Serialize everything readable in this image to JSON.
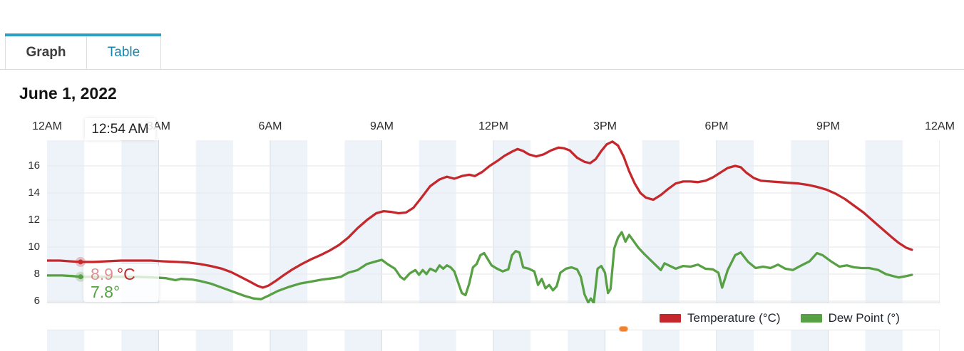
{
  "tabs": {
    "graph": "Graph",
    "table": "Table"
  },
  "heading": "June 1, 2022",
  "tooltip": {
    "time": "12:54 AM",
    "temp_value": "8.9",
    "temp_unit": "°C",
    "dew_value": "7.8",
    "dew_unit": "°"
  },
  "legend": [
    {
      "label": "Temperature (°C)",
      "color": "#c5282c"
    },
    {
      "label": "Dew Point (°)",
      "color": "#57a044"
    }
  ],
  "chart_data": {
    "type": "line",
    "title": "June 1, 2022",
    "x_ticks": [
      "12AM",
      "3AM",
      "6AM",
      "9AM",
      "12PM",
      "3PM",
      "6PM",
      "9PM",
      "12AM"
    ],
    "y_ticks": [
      16,
      14,
      12,
      10,
      8,
      6
    ],
    "x_range_hours": [
      0,
      24
    ],
    "y_range": [
      5.8,
      17.9
    ],
    "grid": true,
    "legend_position": "bottom-right",
    "colors": {
      "band": "#edf3f9",
      "vgrid": "#d7dce2",
      "hgrid": "#e9ebee"
    },
    "hover": {
      "t": 0.9,
      "points": [
        {
          "series": 0,
          "v": 8.9
        },
        {
          "series": 1,
          "v": 7.8
        }
      ]
    },
    "lower_panel_marker": {
      "t": 15.5,
      "color": "#f08130"
    },
    "series": [
      {
        "name": "Temperature (°C)",
        "color": "#c5282c",
        "points": [
          [
            0,
            9.0
          ],
          [
            0.35,
            9.0
          ],
          [
            0.6,
            8.95
          ],
          [
            0.9,
            8.9
          ],
          [
            1.25,
            8.9
          ],
          [
            1.6,
            8.95
          ],
          [
            2.0,
            9.0
          ],
          [
            2.4,
            9.0
          ],
          [
            2.8,
            9.0
          ],
          [
            3.1,
            8.95
          ],
          [
            3.5,
            8.9
          ],
          [
            3.8,
            8.85
          ],
          [
            4.1,
            8.75
          ],
          [
            4.4,
            8.6
          ],
          [
            4.7,
            8.4
          ],
          [
            4.95,
            8.15
          ],
          [
            5.2,
            7.8
          ],
          [
            5.45,
            7.45
          ],
          [
            5.65,
            7.15
          ],
          [
            5.8,
            7.0
          ],
          [
            5.95,
            7.15
          ],
          [
            6.15,
            7.5
          ],
          [
            6.35,
            7.9
          ],
          [
            6.6,
            8.35
          ],
          [
            6.85,
            8.75
          ],
          [
            7.1,
            9.1
          ],
          [
            7.35,
            9.4
          ],
          [
            7.6,
            9.75
          ],
          [
            7.85,
            10.15
          ],
          [
            8.1,
            10.7
          ],
          [
            8.35,
            11.4
          ],
          [
            8.6,
            12.0
          ],
          [
            8.85,
            12.5
          ],
          [
            9.05,
            12.65
          ],
          [
            9.25,
            12.6
          ],
          [
            9.45,
            12.5
          ],
          [
            9.65,
            12.55
          ],
          [
            9.85,
            12.9
          ],
          [
            10.05,
            13.6
          ],
          [
            10.3,
            14.5
          ],
          [
            10.55,
            15.0
          ],
          [
            10.75,
            15.2
          ],
          [
            10.95,
            15.05
          ],
          [
            11.15,
            15.25
          ],
          [
            11.35,
            15.35
          ],
          [
            11.5,
            15.25
          ],
          [
            11.7,
            15.55
          ],
          [
            11.9,
            16.0
          ],
          [
            12.1,
            16.35
          ],
          [
            12.3,
            16.75
          ],
          [
            12.5,
            17.05
          ],
          [
            12.65,
            17.25
          ],
          [
            12.8,
            17.1
          ],
          [
            12.95,
            16.85
          ],
          [
            13.15,
            16.7
          ],
          [
            13.35,
            16.85
          ],
          [
            13.55,
            17.15
          ],
          [
            13.75,
            17.35
          ],
          [
            13.9,
            17.3
          ],
          [
            14.05,
            17.15
          ],
          [
            14.25,
            16.6
          ],
          [
            14.45,
            16.3
          ],
          [
            14.6,
            16.2
          ],
          [
            14.75,
            16.5
          ],
          [
            14.9,
            17.1
          ],
          [
            15.05,
            17.6
          ],
          [
            15.2,
            17.8
          ],
          [
            15.35,
            17.5
          ],
          [
            15.5,
            16.7
          ],
          [
            15.65,
            15.6
          ],
          [
            15.8,
            14.7
          ],
          [
            15.95,
            14.0
          ],
          [
            16.1,
            13.65
          ],
          [
            16.3,
            13.5
          ],
          [
            16.5,
            13.85
          ],
          [
            16.7,
            14.3
          ],
          [
            16.9,
            14.7
          ],
          [
            17.1,
            14.85
          ],
          [
            17.3,
            14.85
          ],
          [
            17.5,
            14.8
          ],
          [
            17.7,
            14.9
          ],
          [
            17.9,
            15.15
          ],
          [
            18.1,
            15.5
          ],
          [
            18.3,
            15.85
          ],
          [
            18.5,
            16.0
          ],
          [
            18.65,
            15.9
          ],
          [
            18.8,
            15.5
          ],
          [
            19.0,
            15.1
          ],
          [
            19.2,
            14.9
          ],
          [
            19.45,
            14.85
          ],
          [
            19.7,
            14.8
          ],
          [
            19.95,
            14.75
          ],
          [
            20.2,
            14.7
          ],
          [
            20.45,
            14.6
          ],
          [
            20.7,
            14.45
          ],
          [
            20.95,
            14.25
          ],
          [
            21.2,
            13.95
          ],
          [
            21.45,
            13.55
          ],
          [
            21.7,
            13.05
          ],
          [
            21.95,
            12.55
          ],
          [
            22.2,
            11.95
          ],
          [
            22.45,
            11.35
          ],
          [
            22.7,
            10.75
          ],
          [
            22.9,
            10.3
          ],
          [
            23.1,
            9.95
          ],
          [
            23.25,
            9.8
          ]
        ]
      },
      {
        "name": "Dew Point (°)",
        "color": "#57a044",
        "points": [
          [
            0,
            7.9
          ],
          [
            0.4,
            7.9
          ],
          [
            0.7,
            7.85
          ],
          [
            0.9,
            7.8
          ],
          [
            1.4,
            7.8
          ],
          [
            1.9,
            7.8
          ],
          [
            2.4,
            7.8
          ],
          [
            2.9,
            7.75
          ],
          [
            3.2,
            7.7
          ],
          [
            3.45,
            7.55
          ],
          [
            3.6,
            7.65
          ],
          [
            3.9,
            7.6
          ],
          [
            4.1,
            7.5
          ],
          [
            4.4,
            7.3
          ],
          [
            4.7,
            7.0
          ],
          [
            5.0,
            6.7
          ],
          [
            5.3,
            6.4
          ],
          [
            5.55,
            6.2
          ],
          [
            5.75,
            6.15
          ],
          [
            5.95,
            6.4
          ],
          [
            6.2,
            6.75
          ],
          [
            6.5,
            7.05
          ],
          [
            6.8,
            7.3
          ],
          [
            7.1,
            7.45
          ],
          [
            7.4,
            7.6
          ],
          [
            7.7,
            7.7
          ],
          [
            7.9,
            7.8
          ],
          [
            8.1,
            8.1
          ],
          [
            8.35,
            8.3
          ],
          [
            8.6,
            8.75
          ],
          [
            8.85,
            8.95
          ],
          [
            9.0,
            9.05
          ],
          [
            9.15,
            8.75
          ],
          [
            9.35,
            8.4
          ],
          [
            9.5,
            7.8
          ],
          [
            9.6,
            7.6
          ],
          [
            9.75,
            8.05
          ],
          [
            9.9,
            8.3
          ],
          [
            10.0,
            7.95
          ],
          [
            10.1,
            8.3
          ],
          [
            10.2,
            8.0
          ],
          [
            10.3,
            8.4
          ],
          [
            10.45,
            8.2
          ],
          [
            10.55,
            8.65
          ],
          [
            10.65,
            8.4
          ],
          [
            10.75,
            8.65
          ],
          [
            10.85,
            8.5
          ],
          [
            10.95,
            8.2
          ],
          [
            11.05,
            7.4
          ],
          [
            11.15,
            6.6
          ],
          [
            11.25,
            6.45
          ],
          [
            11.35,
            7.3
          ],
          [
            11.45,
            8.5
          ],
          [
            11.55,
            8.75
          ],
          [
            11.65,
            9.4
          ],
          [
            11.75,
            9.55
          ],
          [
            11.85,
            9.1
          ],
          [
            11.95,
            8.65
          ],
          [
            12.1,
            8.4
          ],
          [
            12.25,
            8.2
          ],
          [
            12.4,
            8.35
          ],
          [
            12.5,
            9.4
          ],
          [
            12.6,
            9.7
          ],
          [
            12.7,
            9.6
          ],
          [
            12.8,
            8.5
          ],
          [
            12.95,
            8.4
          ],
          [
            13.1,
            8.2
          ],
          [
            13.2,
            7.2
          ],
          [
            13.3,
            7.65
          ],
          [
            13.4,
            6.95
          ],
          [
            13.5,
            7.2
          ],
          [
            13.6,
            6.8
          ],
          [
            13.7,
            7.1
          ],
          [
            13.8,
            8.1
          ],
          [
            13.95,
            8.4
          ],
          [
            14.1,
            8.5
          ],
          [
            14.25,
            8.35
          ],
          [
            14.35,
            7.8
          ],
          [
            14.45,
            6.5
          ],
          [
            14.55,
            5.9
          ],
          [
            14.62,
            6.2
          ],
          [
            14.7,
            5.85
          ],
          [
            14.8,
            8.4
          ],
          [
            14.9,
            8.6
          ],
          [
            15.0,
            8.1
          ],
          [
            15.08,
            6.6
          ],
          [
            15.15,
            6.9
          ],
          [
            15.25,
            9.9
          ],
          [
            15.35,
            10.7
          ],
          [
            15.45,
            11.1
          ],
          [
            15.55,
            10.4
          ],
          [
            15.65,
            10.9
          ],
          [
            15.78,
            10.4
          ],
          [
            15.9,
            9.95
          ],
          [
            16.05,
            9.5
          ],
          [
            16.2,
            9.1
          ],
          [
            16.35,
            8.7
          ],
          [
            16.5,
            8.3
          ],
          [
            16.6,
            8.8
          ],
          [
            16.75,
            8.6
          ],
          [
            16.9,
            8.4
          ],
          [
            17.1,
            8.6
          ],
          [
            17.3,
            8.55
          ],
          [
            17.5,
            8.7
          ],
          [
            17.7,
            8.4
          ],
          [
            17.9,
            8.35
          ],
          [
            18.05,
            8.1
          ],
          [
            18.15,
            7.0
          ],
          [
            18.3,
            8.3
          ],
          [
            18.5,
            9.4
          ],
          [
            18.65,
            9.6
          ],
          [
            18.85,
            8.9
          ],
          [
            19.05,
            8.45
          ],
          [
            19.25,
            8.55
          ],
          [
            19.45,
            8.45
          ],
          [
            19.65,
            8.7
          ],
          [
            19.85,
            8.4
          ],
          [
            20.05,
            8.3
          ],
          [
            20.25,
            8.6
          ],
          [
            20.5,
            8.95
          ],
          [
            20.7,
            9.55
          ],
          [
            20.85,
            9.4
          ],
          [
            21.1,
            8.9
          ],
          [
            21.3,
            8.55
          ],
          [
            21.5,
            8.65
          ],
          [
            21.7,
            8.5
          ],
          [
            21.9,
            8.45
          ],
          [
            22.1,
            8.45
          ],
          [
            22.35,
            8.3
          ],
          [
            22.55,
            8.0
          ],
          [
            22.75,
            7.85
          ],
          [
            22.9,
            7.75
          ],
          [
            23.1,
            7.85
          ],
          [
            23.25,
            7.95
          ]
        ]
      }
    ]
  }
}
